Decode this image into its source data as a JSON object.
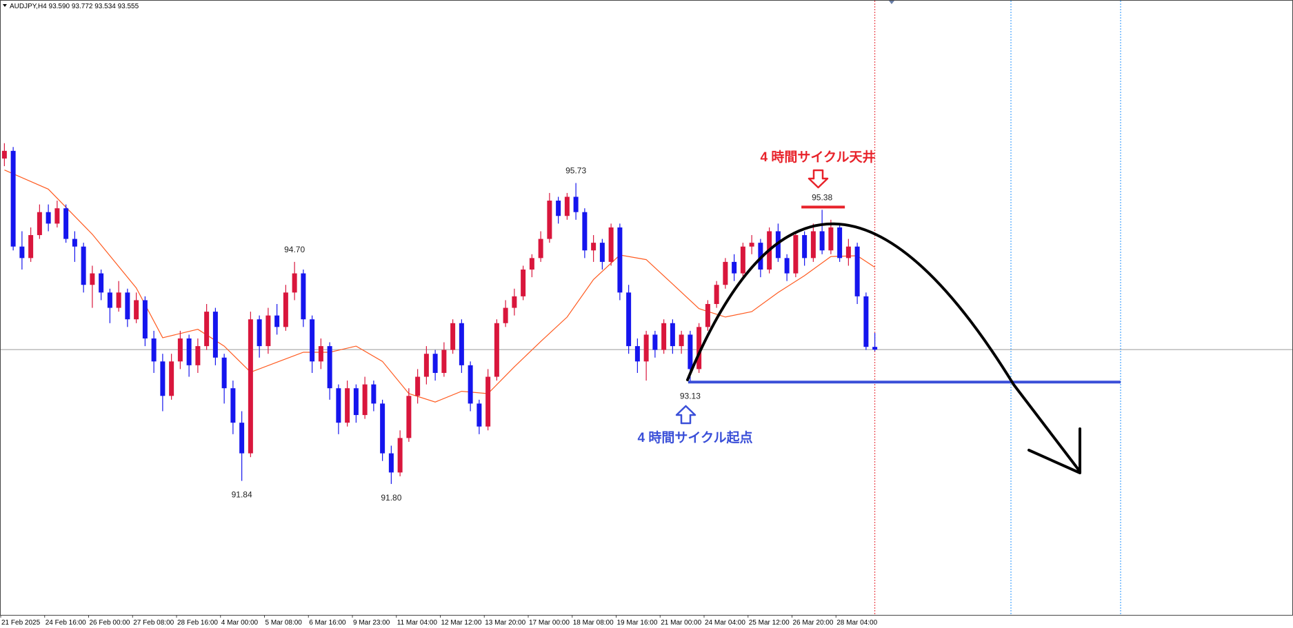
{
  "chart_data": {
    "type": "candlestick",
    "title": "AUDJPY,H4  93.590 93.772 93.534 93.555",
    "up_color": "#d9163c",
    "down_color": "#1515ee",
    "ylim": [
      90.09,
      98.12
    ],
    "current_price_line": true,
    "ohlc": [
      [
        96.05,
        96.25,
        95.95,
        96.15
      ],
      [
        96.15,
        96.2,
        94.85,
        94.9
      ],
      [
        94.9,
        95.1,
        94.6,
        94.75
      ],
      [
        94.75,
        95.15,
        94.7,
        95.05
      ],
      [
        95.05,
        95.45,
        95.0,
        95.35
      ],
      [
        95.35,
        95.45,
        95.1,
        95.2
      ],
      [
        95.2,
        95.5,
        95.15,
        95.4
      ],
      [
        95.4,
        95.45,
        94.95,
        95.0
      ],
      [
        95.0,
        95.1,
        94.7,
        94.9
      ],
      [
        94.9,
        94.95,
        94.3,
        94.4
      ],
      [
        94.4,
        94.65,
        94.1,
        94.55
      ],
      [
        94.55,
        94.6,
        94.2,
        94.3
      ],
      [
        94.3,
        94.35,
        93.9,
        94.1
      ],
      [
        94.1,
        94.45,
        94.05,
        94.3
      ],
      [
        94.3,
        94.35,
        93.85,
        93.95
      ],
      [
        93.95,
        94.3,
        93.9,
        94.2
      ],
      [
        94.2,
        94.25,
        93.6,
        93.7
      ],
      [
        93.7,
        93.8,
        93.25,
        93.4
      ],
      [
        93.4,
        93.5,
        92.75,
        92.95
      ],
      [
        92.95,
        93.5,
        92.9,
        93.4
      ],
      [
        93.4,
        93.8,
        93.3,
        93.7
      ],
      [
        93.7,
        93.75,
        93.2,
        93.35
      ],
      [
        93.35,
        93.7,
        93.25,
        93.6
      ],
      [
        93.6,
        94.15,
        93.55,
        94.05
      ],
      [
        94.05,
        94.1,
        93.35,
        93.45
      ],
      [
        93.45,
        93.5,
        92.85,
        93.05
      ],
      [
        93.05,
        93.15,
        92.45,
        92.6
      ],
      [
        92.6,
        92.75,
        91.84,
        92.2
      ],
      [
        92.2,
        94.05,
        92.15,
        93.95
      ],
      [
        93.95,
        94.0,
        93.45,
        93.6
      ],
      [
        93.6,
        94.1,
        93.5,
        94.0
      ],
      [
        94.0,
        94.15,
        93.75,
        93.85
      ],
      [
        93.85,
        94.4,
        93.8,
        94.3
      ],
      [
        94.3,
        94.7,
        94.2,
        94.55
      ],
      [
        94.55,
        94.6,
        93.85,
        93.95
      ],
      [
        93.95,
        94.0,
        93.25,
        93.4
      ],
      [
        93.4,
        93.7,
        93.3,
        93.6
      ],
      [
        93.6,
        93.65,
        92.9,
        93.05
      ],
      [
        93.05,
        93.1,
        92.45,
        92.6
      ],
      [
        92.6,
        93.15,
        92.55,
        93.05
      ],
      [
        93.05,
        93.1,
        92.6,
        92.7
      ],
      [
        92.7,
        93.2,
        92.65,
        93.1
      ],
      [
        93.1,
        93.15,
        92.75,
        92.85
      ],
      [
        92.85,
        92.9,
        92.1,
        92.2
      ],
      [
        92.2,
        92.3,
        91.8,
        91.95
      ],
      [
        91.95,
        92.5,
        91.9,
        92.4
      ],
      [
        92.4,
        93.05,
        92.35,
        92.95
      ],
      [
        92.95,
        93.3,
        92.85,
        93.2
      ],
      [
        93.2,
        93.6,
        93.1,
        93.5
      ],
      [
        93.5,
        93.55,
        93.15,
        93.25
      ],
      [
        93.25,
        93.65,
        93.2,
        93.55
      ],
      [
        93.55,
        93.95,
        93.5,
        93.9
      ],
      [
        93.9,
        93.95,
        93.25,
        93.35
      ],
      [
        93.35,
        93.4,
        92.75,
        92.85
      ],
      [
        92.85,
        92.9,
        92.45,
        92.55
      ],
      [
        92.55,
        93.3,
        92.5,
        93.2
      ],
      [
        93.2,
        93.95,
        93.15,
        93.9
      ],
      [
        93.9,
        94.2,
        93.85,
        94.1
      ],
      [
        94.1,
        94.35,
        94.0,
        94.25
      ],
      [
        94.25,
        94.65,
        94.2,
        94.6
      ],
      [
        94.6,
        94.8,
        94.5,
        94.75
      ],
      [
        94.75,
        95.1,
        94.7,
        95.0
      ],
      [
        95.0,
        95.6,
        94.95,
        95.5
      ],
      [
        95.5,
        95.55,
        95.2,
        95.3
      ],
      [
        95.3,
        95.6,
        95.25,
        95.55
      ],
      [
        95.55,
        95.73,
        95.25,
        95.35
      ],
      [
        95.35,
        95.4,
        94.75,
        94.85
      ],
      [
        94.85,
        95.05,
        94.7,
        94.95
      ],
      [
        94.95,
        95.0,
        94.6,
        94.7
      ],
      [
        94.7,
        95.2,
        94.65,
        95.15
      ],
      [
        95.15,
        95.2,
        94.2,
        94.3
      ],
      [
        94.3,
        94.4,
        93.5,
        93.6
      ],
      [
        93.6,
        93.7,
        93.25,
        93.4
      ],
      [
        93.4,
        93.8,
        93.15,
        93.75
      ],
      [
        93.75,
        93.8,
        93.45,
        93.55
      ],
      [
        93.55,
        93.95,
        93.5,
        93.9
      ],
      [
        93.9,
        93.95,
        93.5,
        93.6
      ],
      [
        93.6,
        93.8,
        93.5,
        93.75
      ],
      [
        93.75,
        93.8,
        93.13,
        93.3
      ],
      [
        93.3,
        93.9,
        93.25,
        93.85
      ],
      [
        93.85,
        94.2,
        93.8,
        94.15
      ],
      [
        94.15,
        94.45,
        94.1,
        94.4
      ],
      [
        94.4,
        94.75,
        94.35,
        94.7
      ],
      [
        94.7,
        94.8,
        94.45,
        94.55
      ],
      [
        94.55,
        94.95,
        94.5,
        94.9
      ],
      [
        94.9,
        95.05,
        94.8,
        94.95
      ],
      [
        94.95,
        95.0,
        94.5,
        94.6
      ],
      [
        94.6,
        95.15,
        94.55,
        95.1
      ],
      [
        95.1,
        95.2,
        94.7,
        94.75
      ],
      [
        94.75,
        94.8,
        94.45,
        94.55
      ],
      [
        94.55,
        95.1,
        94.5,
        95.05
      ],
      [
        95.05,
        95.1,
        94.65,
        94.75
      ],
      [
        94.75,
        95.2,
        94.7,
        95.1
      ],
      [
        95.1,
        95.38,
        94.8,
        94.85
      ],
      [
        94.85,
        95.25,
        94.8,
        95.15
      ],
      [
        95.15,
        95.2,
        94.7,
        94.75
      ],
      [
        94.75,
        95.0,
        94.65,
        94.9
      ],
      [
        94.9,
        94.95,
        94.15,
        94.25
      ],
      [
        94.25,
        94.3,
        93.55,
        93.59
      ],
      [
        93.59,
        93.772,
        93.534,
        93.555
      ]
    ],
    "ma": {
      "color": "#ff5a1f",
      "x": [
        0,
        5,
        10,
        15,
        18,
        22,
        25,
        28,
        31,
        34,
        37,
        40,
        43,
        46,
        49,
        52,
        55,
        58,
        61,
        64,
        67,
        70,
        73,
        76,
        79,
        82,
        85,
        88,
        91,
        94,
        97,
        99
      ],
      "values": [
        95.9,
        95.65,
        95.06,
        94.36,
        93.71,
        93.82,
        93.6,
        93.26,
        93.39,
        93.52,
        93.52,
        93.6,
        93.4,
        92.98,
        92.87,
        93.01,
        92.98,
        93.33,
        93.66,
        93.98,
        94.47,
        94.79,
        94.73,
        94.41,
        94.09,
        93.98,
        94.05,
        94.3,
        94.52,
        94.77,
        94.78,
        94.63
      ]
    },
    "x_labels": [
      "21 Feb 2025",
      "24 Feb 16:00",
      "26 Feb 00:00",
      "27 Feb 08:00",
      "28 Feb 16:00",
      "4 Mar 00:00",
      "5 Mar 08:00",
      "6 Mar 16:00",
      "9 Mar 23:00",
      "11 Mar 04:00",
      "12 Mar 12:00",
      "13 Mar 20:00",
      "17 Mar 00:00",
      "18 Mar 08:00",
      "19 Mar 16:00",
      "21 Mar 00:00",
      "24 Mar 04:00",
      "25 Mar 12:00",
      "26 Mar 20:00",
      "28 Mar 04:00"
    ],
    "price_labels": [
      {
        "value": 94.7,
        "label": "94.70"
      },
      95.73,
      91.84,
      {
        "value": 91.8,
        "label": "91.80"
      },
      93.13,
      95.38
    ],
    "annotations": [
      "4 時間サイクル天井",
      "4 時間サイクル起点"
    ]
  }
}
